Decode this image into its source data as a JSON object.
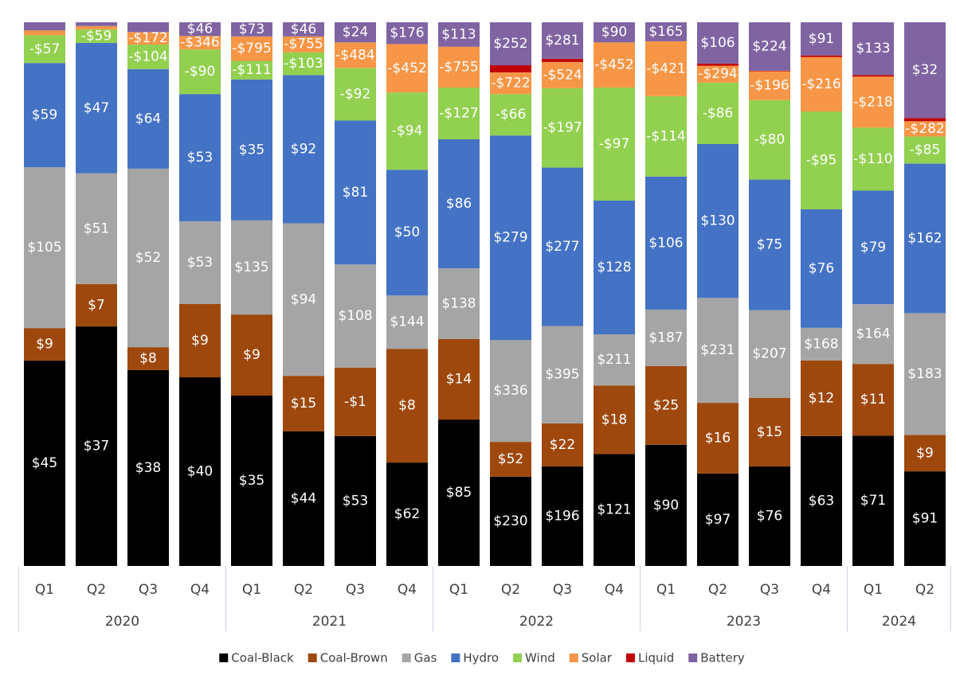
{
  "chart_data": {
    "type": "stacked_bar_100",
    "categories": [
      "Q1",
      "Q2",
      "Q3",
      "Q4",
      "Q1",
      "Q2",
      "Q3",
      "Q4",
      "Q1",
      "Q2",
      "Q3",
      "Q4",
      "Q1",
      "Q2",
      "Q3",
      "Q4",
      "Q1",
      "Q2"
    ],
    "years": [
      "2020",
      "2020",
      "2020",
      "2020",
      "2021",
      "2021",
      "2021",
      "2021",
      "2022",
      "2022",
      "2022",
      "2022",
      "2023",
      "2023",
      "2023",
      "2023",
      "2024",
      "2024"
    ],
    "series": [
      {
        "name": "Coal-Black",
        "color": "#000000",
        "values": [
          37.8,
          44.1,
          36.0,
          34.7,
          31.3,
          24.7,
          23.9,
          19.0,
          26.9,
          16.4,
          18.3,
          20.6,
          22.3,
          17.0,
          18.3,
          23.9,
          24.0,
          17.4
        ],
        "labels": [
          "$45",
          "$37",
          "$38",
          "$40",
          "$35",
          "$44",
          "$53",
          "$62",
          "$85",
          "$230",
          "$196",
          "$121",
          "$90",
          "$97",
          "$76",
          "$63",
          "$71",
          "$91"
        ]
      },
      {
        "name": "Coal-Brown",
        "color": "#9e480e",
        "values": [
          6.0,
          7.8,
          4.2,
          13.5,
          14.9,
          10.2,
          12.6,
          20.9,
          14.8,
          6.4,
          7.9,
          12.6,
          14.5,
          13.0,
          12.6,
          13.9,
          13.2,
          6.7
        ],
        "labels": [
          "$9",
          "$7",
          "$8",
          "$9",
          "$9",
          "$15",
          "-$1",
          "$8",
          "$14",
          "$52",
          "$22",
          "$18",
          "$25",
          "$16",
          "$15",
          "$12",
          "$11",
          "$9"
        ]
      },
      {
        "name": "Gas",
        "color": "#a5a5a5",
        "values": [
          29.6,
          20.4,
          32.8,
          15.2,
          17.3,
          28.0,
          19.0,
          9.8,
          13.0,
          18.7,
          17.9,
          9.4,
          10.4,
          19.3,
          16.1,
          6.0,
          11.0,
          22.4
        ],
        "labels": [
          "$105",
          "$51",
          "$52",
          "$53",
          "$135",
          "$94",
          "$108",
          "$144",
          "$138",
          "$336",
          "$395",
          "$211",
          "$187",
          "$231",
          "$207",
          "$168",
          "$164",
          "$183"
        ]
      },
      {
        "name": "Hydro",
        "color": "#4472c4",
        "values": [
          19.2,
          24.0,
          18.3,
          23.4,
          25.9,
          27.2,
          26.5,
          23.1,
          23.7,
          37.6,
          29.1,
          24.6,
          24.5,
          28.3,
          24.0,
          21.8,
          20.9,
          27.5
        ],
        "labels": [
          "$59",
          "$47",
          "$64",
          "$53",
          "$35",
          "$92",
          "$81",
          "$50",
          "$86",
          "$279",
          "$277",
          "$128",
          "$106",
          "$130",
          "$75",
          "$76",
          "$79",
          "$162"
        ]
      },
      {
        "name": "Wind",
        "color": "#92d050",
        "values": [
          5.1,
          2.5,
          4.5,
          8.2,
          3.4,
          4.2,
          9.7,
          14.2,
          9.5,
          7.6,
          14.6,
          20.8,
          14.8,
          11.3,
          14.6,
          18.0,
          11.6,
          5.0
        ],
        "labels": [
          "-$57",
          "-$59",
          "-$104",
          "-$90",
          "-$111",
          "-$103",
          "-$92",
          "-$94",
          "-$127",
          "-$66",
          "-$197",
          "-$97",
          "-$114",
          "-$86",
          "-$80",
          "-$95",
          "-$110",
          "-$85"
        ]
      },
      {
        "name": "Solar",
        "color": "#f79646",
        "values": [
          0.9,
          0.6,
          2.3,
          2.5,
          4.5,
          2.9,
          4.7,
          8.9,
          7.5,
          4.0,
          4.8,
          8.3,
          10.1,
          3.1,
          5.3,
          10.0,
          9.4,
          2.8
        ],
        "labels": [
          null,
          null,
          "-$172",
          "-$346",
          "-$795",
          "-$755",
          "-$484",
          "-$452",
          "-$755",
          "-$722",
          "-$524",
          "-$452",
          "-$421",
          "-$294",
          "-$196",
          "-$216",
          "-$218",
          "-$282"
        ]
      },
      {
        "name": "Liquid",
        "color": "#c00000",
        "values": [
          0,
          0,
          0,
          0,
          0,
          0,
          0,
          0,
          0,
          1.3,
          0.6,
          0,
          0,
          0.4,
          0.1,
          0.3,
          0.3,
          0.6
        ],
        "labels": [
          null,
          null,
          null,
          null,
          null,
          null,
          null,
          null,
          null,
          null,
          null,
          null,
          null,
          null,
          null,
          null,
          null,
          null
        ]
      },
      {
        "name": "Battery",
        "color": "#8064a2",
        "values": [
          1.5,
          0.7,
          1.8,
          2.5,
          2.6,
          2.6,
          3.7,
          4.0,
          4.5,
          7.9,
          6.7,
          3.7,
          3.5,
          7.6,
          8.9,
          6.1,
          9.7,
          17.6
        ],
        "labels": [
          null,
          null,
          null,
          "$46",
          "$73",
          "$46",
          "$24",
          "$176",
          "$113",
          "$252",
          "$281",
          "$90",
          "$165",
          "$106",
          "$224",
          "$91",
          "$133",
          "$32"
        ]
      }
    ]
  }
}
